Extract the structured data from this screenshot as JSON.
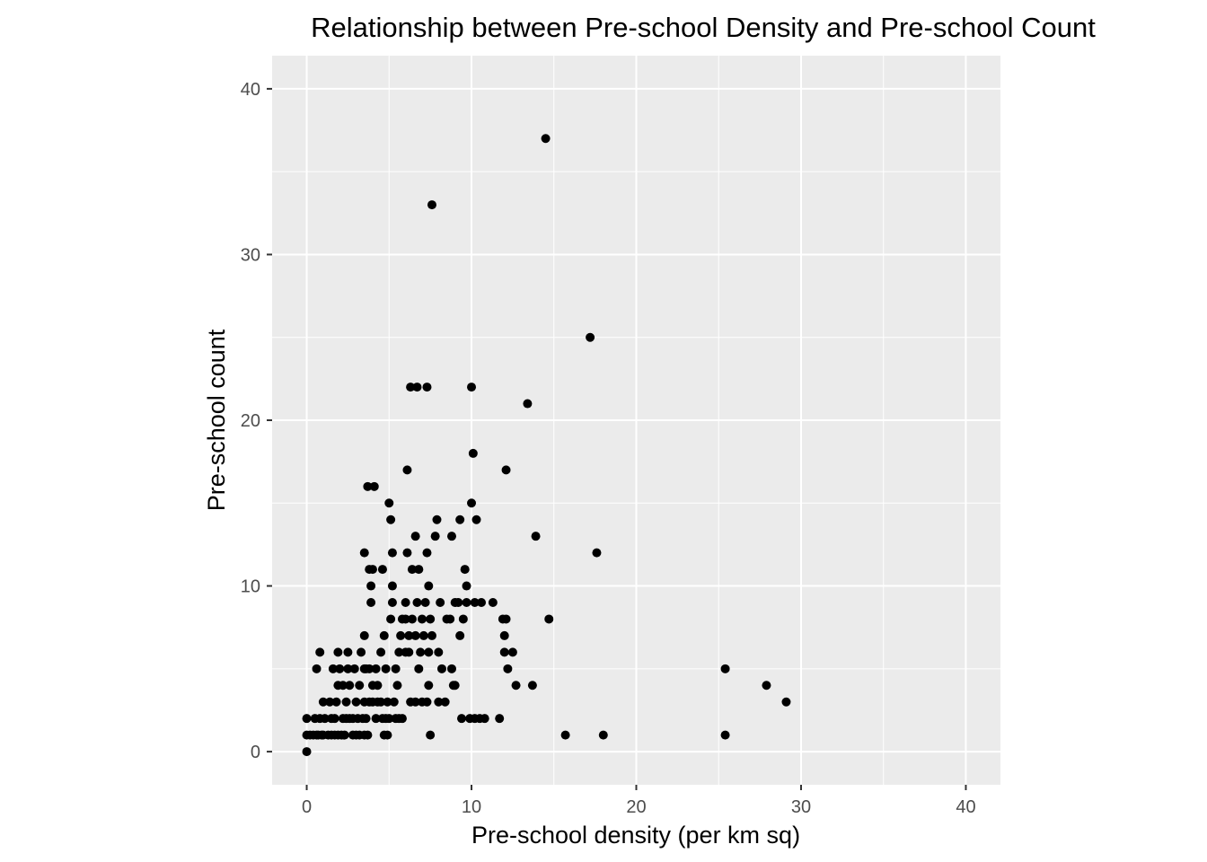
{
  "chart_data": {
    "type": "scatter",
    "title": "Relationship between Pre-school Density and Pre-school Count",
    "xlabel": "Pre-school density (per km sq)",
    "ylabel": "Pre-school count",
    "xlim": [
      -2.1,
      42.1
    ],
    "ylim": [
      -2,
      42
    ],
    "xticks": [
      0,
      10,
      20,
      30,
      40
    ],
    "yticks": [
      0,
      10,
      20,
      30,
      40
    ],
    "xtick_labels": [
      "0",
      "10",
      "20",
      "30",
      "40"
    ],
    "ytick_labels": [
      "0",
      "10",
      "20",
      "30",
      "40"
    ],
    "grid": true,
    "legend": "none",
    "colors": {
      "panel": "#ebebeb",
      "grid": "#ffffff",
      "point": "#000000",
      "tick_text": "#4d4d4d"
    },
    "points": [
      [
        0.0,
        0
      ],
      [
        0.0,
        1
      ],
      [
        0.0,
        2
      ],
      [
        0.2,
        1
      ],
      [
        0.4,
        1
      ],
      [
        0.5,
        2
      ],
      [
        0.6,
        1
      ],
      [
        0.7,
        1
      ],
      [
        0.9,
        1
      ],
      [
        1.0,
        1
      ],
      [
        0.6,
        5
      ],
      [
        0.8,
        6
      ],
      [
        0.8,
        2
      ],
      [
        1.1,
        2
      ],
      [
        1.3,
        1
      ],
      [
        1.5,
        1
      ],
      [
        1.7,
        1
      ],
      [
        1.9,
        1
      ],
      [
        2.1,
        1
      ],
      [
        2.3,
        1
      ],
      [
        1.0,
        3
      ],
      [
        1.4,
        3
      ],
      [
        1.5,
        2
      ],
      [
        1.7,
        2
      ],
      [
        1.8,
        3
      ],
      [
        1.6,
        5
      ],
      [
        1.9,
        6
      ],
      [
        1.9,
        4
      ],
      [
        2.0,
        5
      ],
      [
        2.2,
        4
      ],
      [
        2.2,
        2
      ],
      [
        2.4,
        2
      ],
      [
        2.6,
        2
      ],
      [
        2.8,
        2
      ],
      [
        2.4,
        3
      ],
      [
        2.6,
        4
      ],
      [
        2.5,
        5
      ],
      [
        2.5,
        6
      ],
      [
        2.9,
        5
      ],
      [
        2.8,
        1
      ],
      [
        3.0,
        1
      ],
      [
        3.2,
        1
      ],
      [
        3.4,
        2
      ],
      [
        3.1,
        2
      ],
      [
        3.0,
        3
      ],
      [
        3.2,
        4
      ],
      [
        3.5,
        5
      ],
      [
        3.3,
        6
      ],
      [
        3.5,
        3
      ],
      [
        3.5,
        1
      ],
      [
        3.7,
        1
      ],
      [
        3.6,
        2
      ],
      [
        3.8,
        3
      ],
      [
        3.6,
        5
      ],
      [
        3.5,
        12
      ],
      [
        3.7,
        16
      ],
      [
        4.1,
        16
      ],
      [
        3.8,
        11
      ],
      [
        4.0,
        11
      ],
      [
        3.9,
        9
      ],
      [
        3.9,
        10
      ],
      [
        3.5,
        7
      ],
      [
        3.8,
        5
      ],
      [
        4.0,
        4
      ],
      [
        4.2,
        5
      ],
      [
        4.0,
        3
      ],
      [
        4.2,
        2
      ],
      [
        4.3,
        3
      ],
      [
        4.5,
        3
      ],
      [
        4.3,
        4
      ],
      [
        4.5,
        6
      ],
      [
        4.6,
        2
      ],
      [
        4.7,
        1
      ],
      [
        4.8,
        2
      ],
      [
        4.9,
        1
      ],
      [
        4.7,
        7
      ],
      [
        4.6,
        11
      ],
      [
        4.8,
        5
      ],
      [
        4.9,
        3
      ],
      [
        5.0,
        2
      ],
      [
        5.1,
        8
      ],
      [
        5.2,
        9
      ],
      [
        5.2,
        10
      ],
      [
        5.0,
        15
      ],
      [
        5.1,
        14
      ],
      [
        5.2,
        12
      ],
      [
        5.3,
        3
      ],
      [
        5.4,
        5
      ],
      [
        5.4,
        2
      ],
      [
        5.6,
        2
      ],
      [
        5.8,
        2
      ],
      [
        5.6,
        6
      ],
      [
        5.7,
        7
      ],
      [
        5.8,
        8
      ],
      [
        5.5,
        4
      ],
      [
        6.0,
        9
      ],
      [
        6.2,
        7
      ],
      [
        6.0,
        6
      ],
      [
        6.2,
        6
      ],
      [
        6.0,
        8
      ],
      [
        6.1,
        12
      ],
      [
        6.1,
        17
      ],
      [
        6.3,
        22
      ],
      [
        6.7,
        22
      ],
      [
        7.3,
        22
      ],
      [
        6.4,
        11
      ],
      [
        6.4,
        8
      ],
      [
        6.3,
        3
      ],
      [
        6.6,
        3
      ],
      [
        6.6,
        7
      ],
      [
        6.7,
        9
      ],
      [
        6.6,
        13
      ],
      [
        6.8,
        11
      ],
      [
        6.8,
        5
      ],
      [
        6.9,
        6
      ],
      [
        7.0,
        3
      ],
      [
        7.0,
        8
      ],
      [
        7.1,
        7
      ],
      [
        7.2,
        9
      ],
      [
        7.3,
        3
      ],
      [
        7.3,
        12
      ],
      [
        7.4,
        4
      ],
      [
        7.4,
        6
      ],
      [
        7.5,
        1
      ],
      [
        7.4,
        10
      ],
      [
        7.5,
        8
      ],
      [
        7.6,
        7
      ],
      [
        7.6,
        33
      ],
      [
        7.8,
        13
      ],
      [
        7.9,
        14
      ],
      [
        8.0,
        6
      ],
      [
        8.0,
        3
      ],
      [
        8.1,
        9
      ],
      [
        8.2,
        5
      ],
      [
        8.4,
        3
      ],
      [
        8.5,
        8
      ],
      [
        8.7,
        8
      ],
      [
        8.8,
        13
      ],
      [
        8.8,
        5
      ],
      [
        8.9,
        4
      ],
      [
        9.0,
        4
      ],
      [
        9.0,
        9
      ],
      [
        9.2,
        9
      ],
      [
        9.3,
        14
      ],
      [
        9.3,
        7
      ],
      [
        9.4,
        2
      ],
      [
        9.5,
        8
      ],
      [
        9.6,
        11
      ],
      [
        9.7,
        9
      ],
      [
        9.7,
        10
      ],
      [
        9.9,
        2
      ],
      [
        10.0,
        22
      ],
      [
        10.0,
        15
      ],
      [
        10.1,
        18
      ],
      [
        10.2,
        9
      ],
      [
        10.2,
        2
      ],
      [
        10.3,
        14
      ],
      [
        10.5,
        2
      ],
      [
        10.6,
        9
      ],
      [
        10.8,
        2
      ],
      [
        11.3,
        9
      ],
      [
        11.7,
        2
      ],
      [
        11.9,
        8
      ],
      [
        12.0,
        6
      ],
      [
        12.0,
        7
      ],
      [
        12.1,
        8
      ],
      [
        12.1,
        17
      ],
      [
        12.2,
        5
      ],
      [
        12.5,
        6
      ],
      [
        12.7,
        4
      ],
      [
        13.4,
        21
      ],
      [
        13.9,
        13
      ],
      [
        13.7,
        4
      ],
      [
        14.5,
        37
      ],
      [
        14.7,
        8
      ],
      [
        15.7,
        1
      ],
      [
        17.2,
        25
      ],
      [
        17.6,
        12
      ],
      [
        18.0,
        1
      ],
      [
        25.4,
        1
      ],
      [
        25.4,
        5
      ],
      [
        27.9,
        4
      ],
      [
        29.1,
        3
      ]
    ]
  }
}
